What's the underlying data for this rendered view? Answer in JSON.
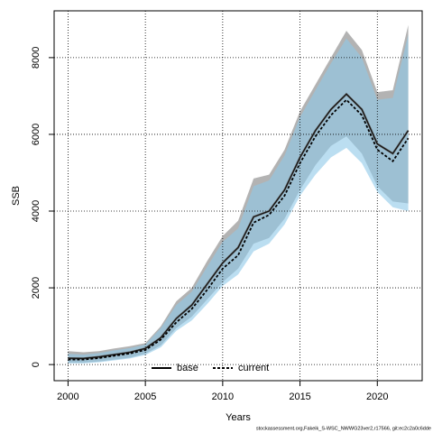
{
  "chart_data": {
    "type": "band-line",
    "x": [
      2000,
      2001,
      2002,
      2003,
      2004,
      2005,
      2006,
      2007,
      2008,
      2009,
      2010,
      2011,
      2012,
      2013,
      2014,
      2015,
      2016,
      2017,
      2018,
      2019,
      2020,
      2021,
      2022
    ],
    "series": [
      {
        "name": "base",
        "color": "#000000",
        "band_color": "#999999",
        "dashed": false,
        "values": [
          165,
          160,
          200,
          260,
          320,
          420,
          700,
          1200,
          1550,
          2100,
          2650,
          3050,
          3850,
          4000,
          4550,
          5400,
          6100,
          6650,
          7050,
          6650,
          5750,
          5500,
          6100
        ],
        "upper": [
          350,
          320,
          350,
          420,
          480,
          560,
          1000,
          1650,
          2000,
          2700,
          3350,
          3750,
          4850,
          4950,
          5600,
          6600,
          7300,
          8000,
          8700,
          8200,
          7100,
          7150,
          8850
        ],
        "lower": [
          50,
          50,
          80,
          130,
          180,
          280,
          500,
          950,
          1250,
          1700,
          2150,
          2500,
          3150,
          3300,
          3800,
          4550,
          5200,
          5700,
          5950,
          5500,
          4650,
          4250,
          4200
        ]
      },
      {
        "name": "current",
        "color": "#000000",
        "band_color": "#8ec8e8",
        "dashed": true,
        "values": [
          130,
          130,
          170,
          230,
          290,
          380,
          650,
          1100,
          1450,
          1950,
          2500,
          2850,
          3700,
          3900,
          4400,
          5250,
          5950,
          6500,
          6900,
          6500,
          5600,
          5300,
          5900
        ],
        "upper": [
          280,
          260,
          300,
          370,
          430,
          520,
          950,
          1550,
          1900,
          2550,
          3200,
          3550,
          4650,
          4800,
          5450,
          6450,
          7150,
          7850,
          8500,
          8000,
          6900,
          6950,
          8600
        ],
        "lower": [
          30,
          30,
          60,
          110,
          160,
          250,
          450,
          880,
          1150,
          1580,
          2050,
          2350,
          2950,
          3150,
          3650,
          4400,
          4950,
          5400,
          5650,
          5250,
          4500,
          4100,
          4000
        ]
      }
    ],
    "xlim": [
      1999.1,
      2022.9
    ],
    "ylim": [
      -420,
      9220
    ],
    "xticks": [
      2000,
      2005,
      2010,
      2015,
      2020
    ],
    "yticks": [
      0,
      2000,
      4000,
      6000,
      8000
    ],
    "grid": true,
    "xlabel": "Years",
    "ylabel": "SSB",
    "legend": "bottom",
    "footnote": "stockassessment.org,Fakeik_S-WSC_NWWG23ver2,r17566, git:ec2c2a0c6dde"
  }
}
